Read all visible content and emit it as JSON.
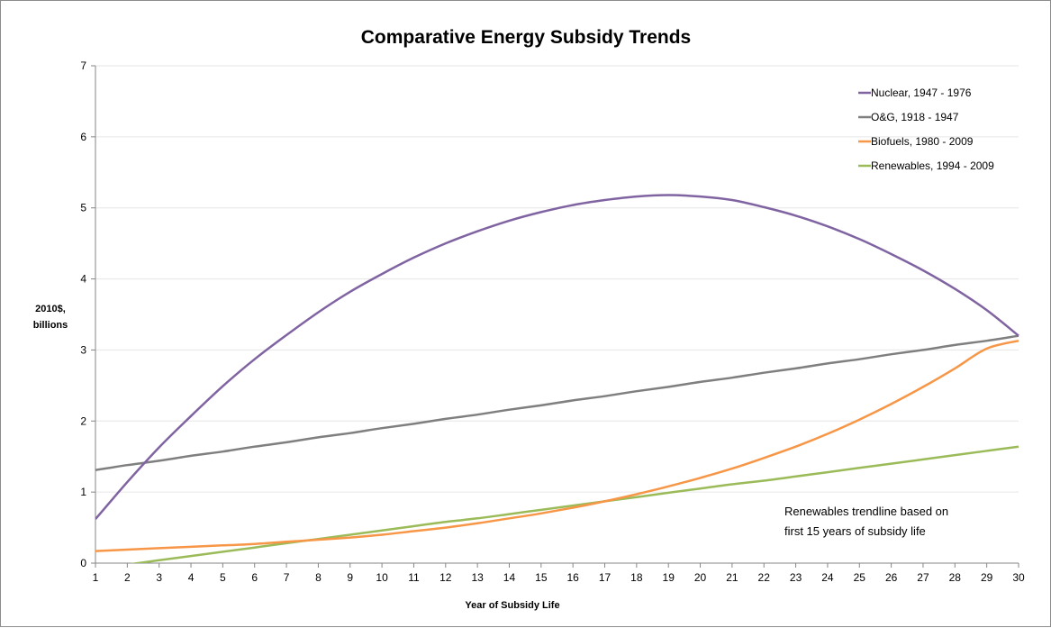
{
  "chart_data": {
    "type": "line",
    "title": "Comparative Energy Subsidy Trends",
    "xlabel": "Year of Subsidy Life",
    "ylabel_lines": [
      "2010$,",
      "billions"
    ],
    "x": [
      1,
      2,
      3,
      4,
      5,
      6,
      7,
      8,
      9,
      10,
      11,
      12,
      13,
      14,
      15,
      16,
      17,
      18,
      19,
      20,
      21,
      22,
      23,
      24,
      25,
      26,
      27,
      28,
      29,
      30
    ],
    "xlim": [
      1,
      30
    ],
    "ylim": [
      0,
      7
    ],
    "y_ticks": [
      0,
      1,
      2,
      3,
      4,
      5,
      6,
      7
    ],
    "grid": true,
    "legend_position": "top-right",
    "series": [
      {
        "name": "Nuclear, 1947 - 1976",
        "color": "#8064a2",
        "values": [
          0.62,
          1.14,
          1.63,
          2.07,
          2.49,
          2.87,
          3.21,
          3.53,
          3.82,
          4.07,
          4.3,
          4.5,
          4.67,
          4.82,
          4.94,
          5.04,
          5.11,
          5.16,
          5.18,
          5.16,
          5.11,
          5.01,
          4.89,
          4.74,
          4.56,
          4.35,
          4.12,
          3.86,
          3.56,
          3.2
        ]
      },
      {
        "name": "O&G, 1918 - 1947",
        "color": "#7f7f7f",
        "values": [
          1.31,
          1.38,
          1.44,
          1.51,
          1.57,
          1.64,
          1.7,
          1.77,
          1.83,
          1.9,
          1.96,
          2.03,
          2.09,
          2.16,
          2.22,
          2.29,
          2.35,
          2.42,
          2.48,
          2.55,
          2.61,
          2.68,
          2.74,
          2.81,
          2.87,
          2.94,
          3.0,
          3.07,
          3.13,
          3.2
        ]
      },
      {
        "name": "Biofuels, 1980 - 2009",
        "color": "#f79646",
        "values": [
          0.17,
          0.19,
          0.21,
          0.23,
          0.25,
          0.27,
          0.3,
          0.33,
          0.36,
          0.4,
          0.45,
          0.5,
          0.56,
          0.63,
          0.7,
          0.78,
          0.87,
          0.97,
          1.08,
          1.2,
          1.33,
          1.48,
          1.64,
          1.82,
          2.02,
          2.24,
          2.48,
          2.74,
          3.02,
          3.13
        ]
      },
      {
        "name": "Renewables, 1994 - 2009",
        "color": "#9bbb59",
        "values": [
          -0.08,
          -0.02,
          0.04,
          0.1,
          0.16,
          0.22,
          0.28,
          0.34,
          0.4,
          0.46,
          0.52,
          0.58,
          0.63,
          0.69,
          0.75,
          0.81,
          0.87,
          0.93,
          0.99,
          1.05,
          1.11,
          1.16,
          1.22,
          1.28,
          1.34,
          1.4,
          1.46,
          1.52,
          1.58,
          1.64
        ]
      }
    ],
    "annotation": [
      "Renewables trendline based on",
      "first 15 years of subsidy life"
    ]
  }
}
